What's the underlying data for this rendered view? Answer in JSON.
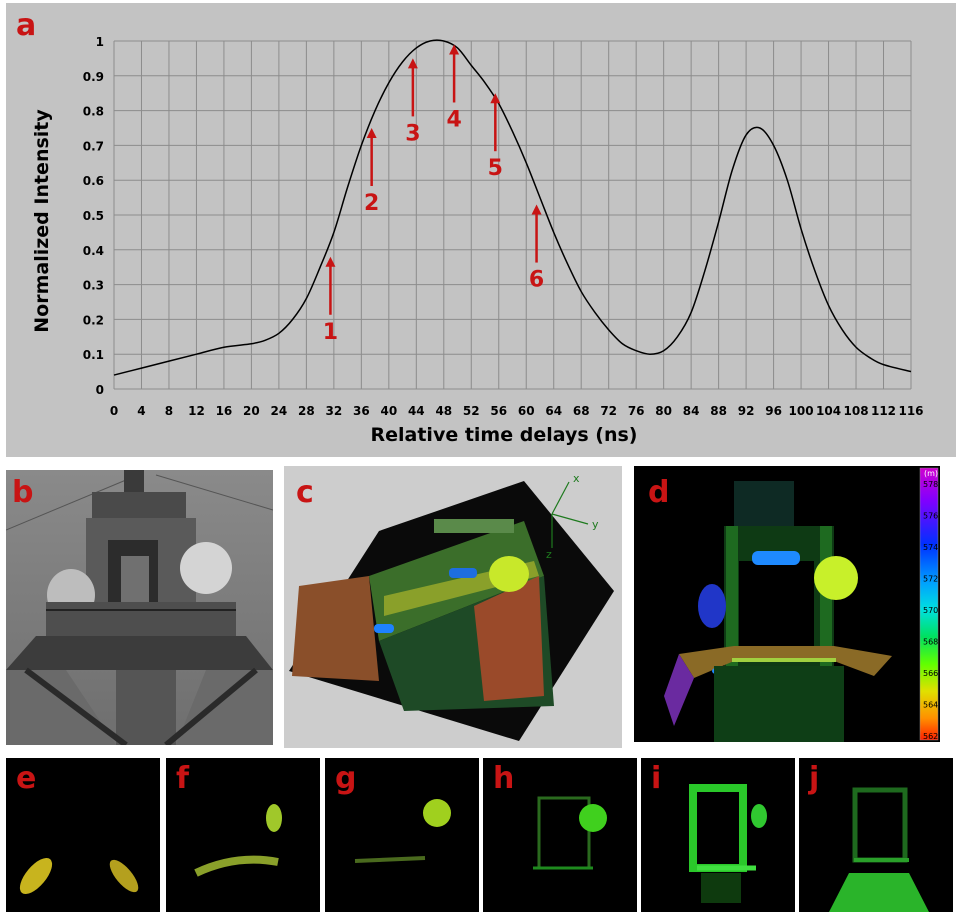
{
  "labels": {
    "a": "a",
    "b": "b",
    "c": "c",
    "d": "d",
    "e": "e",
    "f": "f",
    "g": "g",
    "h": "h",
    "i": "i",
    "j": "j"
  },
  "chart_data": {
    "type": "line",
    "xlabel": "Relative time delays (ns)",
    "ylabel": "Normalized Intensity",
    "xlim": [
      0,
      116
    ],
    "ylim": [
      0,
      1
    ],
    "x_ticks": [
      0,
      4,
      8,
      12,
      16,
      20,
      24,
      28,
      32,
      36,
      40,
      44,
      48,
      52,
      56,
      60,
      64,
      68,
      72,
      76,
      80,
      84,
      88,
      92,
      96,
      100,
      104,
      108,
      112,
      116
    ],
    "y_ticks": [
      0,
      0.1,
      0.2,
      0.3,
      0.4,
      0.5,
      0.6,
      0.7,
      0.8,
      0.9,
      1
    ],
    "y_tick_labels": [
      "0",
      "0.1",
      "0.2",
      "0.3",
      "0.4",
      "0.5",
      "0.6",
      "0.7",
      "0.8",
      "0.9",
      "1"
    ],
    "grid": true,
    "series": [
      {
        "x": [
          0,
          4,
          8,
          12,
          16,
          20,
          22,
          24,
          26,
          28,
          30,
          32,
          34,
          36,
          38,
          40,
          42,
          44,
          46,
          48,
          50,
          52,
          54,
          56,
          58,
          60,
          62,
          64,
          66,
          68,
          70,
          72,
          74,
          76,
          78,
          80,
          82,
          84,
          86,
          88,
          90,
          92,
          94,
          96,
          98,
          100,
          102,
          104,
          106,
          108,
          110,
          112,
          116
        ],
        "y": [
          0.04,
          0.06,
          0.08,
          0.1,
          0.12,
          0.13,
          0.14,
          0.16,
          0.2,
          0.26,
          0.35,
          0.45,
          0.58,
          0.7,
          0.8,
          0.88,
          0.94,
          0.98,
          1.0,
          1.0,
          0.98,
          0.93,
          0.88,
          0.82,
          0.74,
          0.65,
          0.55,
          0.45,
          0.36,
          0.28,
          0.22,
          0.17,
          0.13,
          0.11,
          0.1,
          0.11,
          0.15,
          0.22,
          0.34,
          0.48,
          0.63,
          0.73,
          0.75,
          0.7,
          0.6,
          0.46,
          0.34,
          0.24,
          0.17,
          0.12,
          0.09,
          0.07,
          0.05
        ],
        "color": "#000000"
      }
    ],
    "annotations": [
      {
        "label": "1",
        "x": 31.5,
        "y": 0.38
      },
      {
        "label": "2",
        "x": 37.5,
        "y": 0.75
      },
      {
        "label": "3",
        "x": 43.5,
        "y": 0.95
      },
      {
        "label": "4",
        "x": 49.5,
        "y": 0.99
      },
      {
        "label": "5",
        "x": 55.5,
        "y": 0.85
      },
      {
        "label": "6",
        "x": 61.5,
        "y": 0.53
      }
    ],
    "annotation_color": "#c81414"
  },
  "panel_c": {
    "axes": [
      "x",
      "y",
      "z"
    ]
  },
  "panel_d": {
    "unit": "(m)",
    "colorbar_ticks": [
      "578",
      "576",
      "574",
      "572",
      "570",
      "568",
      "566",
      "564",
      "562"
    ],
    "colorbar_colors": [
      "#d000d0",
      "#8000ff",
      "#0030ff",
      "#00a0ff",
      "#00e0e0",
      "#00e060",
      "#60ff00",
      "#e0e000",
      "#ff9000",
      "#ff2000"
    ]
  }
}
